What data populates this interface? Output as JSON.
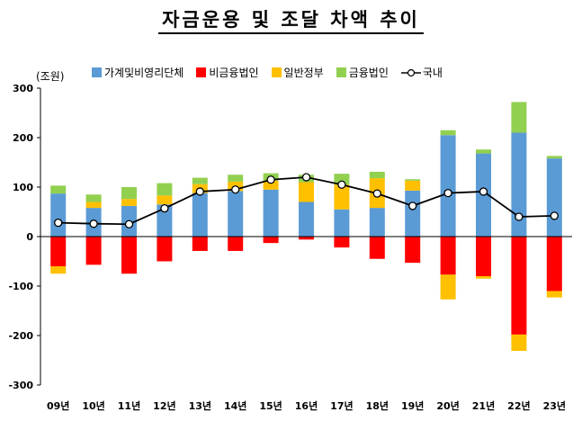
{
  "title": "자금운용 및 조달 차액 추이",
  "unit_label": "(조원)",
  "chart_data": {
    "type": "bar",
    "stacked": true,
    "categories": [
      "09년",
      "10년",
      "11년",
      "12년",
      "13년",
      "14년",
      "15년",
      "16년",
      "17년",
      "18년",
      "19년",
      "20년",
      "21년",
      "22년",
      "23년"
    ],
    "ylim": [
      -300,
      300
    ],
    "yticks": [
      -300,
      -200,
      -100,
      0,
      100,
      200,
      300
    ],
    "series": [
      {
        "name": "가계및비영리단체",
        "color": "#5B9BD5",
        "values": [
          87,
          58,
          62,
          65,
          88,
          92,
          95,
          70,
          55,
          58,
          93,
          205,
          168,
          210,
          158
        ]
      },
      {
        "name": "비금융법인",
        "color": "#FF0000",
        "values": [
          -60,
          -57,
          -75,
          -50,
          -29,
          -29,
          -13,
          -6,
          -22,
          -45,
          -53,
          -77,
          -80,
          -198,
          -110
        ]
      },
      {
        "name": "일반정부",
        "color": "#FFC000",
        "values": [
          -15,
          12,
          14,
          18,
          18,
          19,
          18,
          40,
          50,
          60,
          20,
          -50,
          -5,
          -33,
          -13
        ]
      },
      {
        "name": "금융법인",
        "color": "#92D050",
        "values": [
          16,
          15,
          24,
          25,
          13,
          14,
          15,
          15,
          22,
          13,
          3,
          10,
          8,
          62,
          5
        ]
      }
    ],
    "line": {
      "name": "국내",
      "values": [
        28,
        26,
        25,
        57,
        91,
        95,
        115,
        120,
        105,
        87,
        62,
        88,
        91,
        40,
        42
      ]
    },
    "legend_position": "top",
    "grid": false
  }
}
